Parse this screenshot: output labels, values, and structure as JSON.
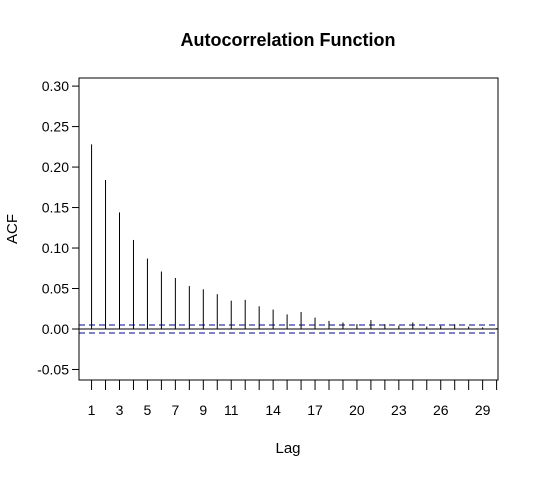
{
  "chart_data": {
    "type": "bar",
    "title": "Autocorrelation Function",
    "xlabel": "Lag",
    "ylabel": "ACF",
    "x": [
      1,
      2,
      3,
      4,
      5,
      6,
      7,
      8,
      9,
      10,
      11,
      12,
      13,
      14,
      15,
      16,
      17,
      18,
      19,
      20,
      21,
      22,
      23,
      24,
      25,
      26,
      27,
      28,
      29,
      30
    ],
    "values": [
      0.228,
      0.184,
      0.144,
      0.11,
      0.087,
      0.071,
      0.063,
      0.053,
      0.049,
      0.043,
      0.035,
      0.036,
      0.028,
      0.024,
      0.018,
      0.021,
      0.014,
      0.01,
      0.008,
      0.006,
      0.011,
      0.006,
      0.004,
      0.008,
      0.003,
      0.004,
      0.006,
      0.003,
      0.002,
      0.001
    ],
    "xlim": [
      0.1,
      30.1
    ],
    "ylim": [
      -0.063,
      0.31
    ],
    "y_ticks": [
      -0.05,
      0.0,
      0.05,
      0.1,
      0.15,
      0.2,
      0.25,
      0.3
    ],
    "y_tick_labels": [
      "-0.05",
      "0.00",
      "0.05",
      "0.10",
      "0.15",
      "0.20",
      "0.25",
      "0.30"
    ],
    "x_ticks": [
      1,
      2,
      3,
      4,
      5,
      6,
      7,
      8,
      9,
      10,
      11,
      12,
      13,
      14,
      15,
      16,
      17,
      18,
      19,
      20,
      21,
      22,
      23,
      24,
      25,
      26,
      27,
      28,
      29,
      30
    ],
    "x_tick_labels": [
      "1",
      "3",
      "5",
      "7",
      "9",
      "11",
      "14",
      "17",
      "20",
      "23",
      "26",
      "29"
    ],
    "x_tick_label_positions": [
      1,
      3,
      5,
      7,
      9,
      11,
      14,
      17,
      20,
      23,
      26,
      29
    ],
    "zero_line": 0,
    "confidence_bounds": [
      0.005,
      -0.005
    ],
    "confidence_color": "#00008b",
    "bar_color": "#000000",
    "grid": false,
    "legend": "none"
  }
}
